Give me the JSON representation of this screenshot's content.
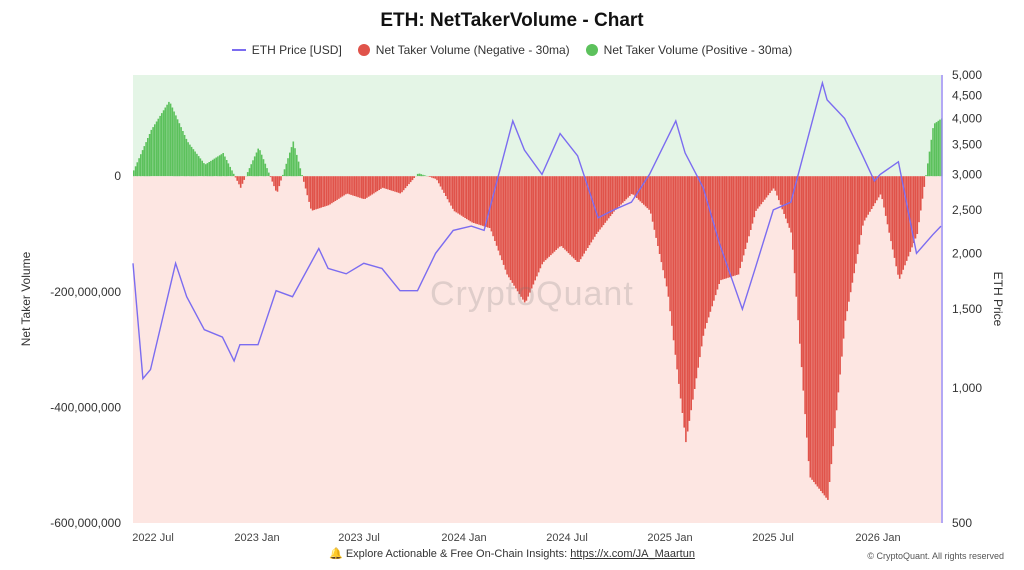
{
  "title": "ETH: NetTakerVolume - Chart",
  "legend": [
    {
      "label": "ETH Price [USD]",
      "color": "#7b6cf0",
      "kind": "line"
    },
    {
      "label": "Net Taker Volume (Negative - 30ma)",
      "color": "#e0534a",
      "kind": "dot"
    },
    {
      "label": "Net Taker Volume (Positive - 30ma)",
      "color": "#5cc15c",
      "kind": "dot"
    }
  ],
  "watermark": "CryptoQuant",
  "footer": {
    "icon": "bell-icon",
    "text": "Explore Actionable & Free On-Chain Insights: ",
    "link": "https://x.com/JA_Maartun"
  },
  "copyright": "© CryptoQuant. All rights reserved",
  "chart_data": {
    "type": "area",
    "x_ticks": [
      "2022 Jul",
      "2023 Jan",
      "2023 Jul",
      "2024 Jan",
      "2024 Jul",
      "2025 Jan",
      "2025 Jul",
      "2026 Jan"
    ],
    "x_range": [
      "2022-06-01",
      "2026-03-15"
    ],
    "y_left": {
      "label": "Net Taker Volume",
      "ticks": [
        0,
        -200000000,
        -400000000,
        -600000000
      ],
      "tick_labels": [
        "0",
        "-200,000,000",
        "-400,000,000",
        "-600,000,000"
      ],
      "range": [
        -600000000,
        175000000
      ]
    },
    "y_right": {
      "label": "ETH Price",
      "scale": "log",
      "range": [
        500,
        5000
      ],
      "ticks": [
        5000,
        4500,
        4000,
        3500,
        3000,
        2500,
        2000,
        1500,
        1000,
        500
      ],
      "tick_labels": [
        "5,000",
        "4,500",
        "4,000",
        "3,500",
        "3,000",
        "2,500",
        "2,000",
        "1,500",
        "1,000",
        "500"
      ]
    },
    "background": {
      "positive": "#e4f5e6",
      "negative": "#fde6e2"
    },
    "net_taker_volume_30ma": {
      "dates": [
        "2022-06-01",
        "2022-07-01",
        "2022-08-01",
        "2022-09-01",
        "2022-10-01",
        "2022-11-01",
        "2022-12-01",
        "2023-01-01",
        "2023-02-01",
        "2023-03-01",
        "2023-04-01",
        "2023-05-01",
        "2023-06-01",
        "2023-07-01",
        "2023-08-01",
        "2023-09-01",
        "2023-10-01",
        "2023-11-01",
        "2023-12-01",
        "2024-01-01",
        "2024-02-01",
        "2024-03-01",
        "2024-04-01",
        "2024-05-01",
        "2024-06-01",
        "2024-07-01",
        "2024-08-01",
        "2024-09-01",
        "2024-10-01",
        "2024-11-01",
        "2024-12-01",
        "2025-01-01",
        "2025-02-01",
        "2025-03-01",
        "2025-04-01",
        "2025-05-01",
        "2025-06-01",
        "2025-07-01",
        "2025-08-01",
        "2025-09-01",
        "2025-10-01",
        "2025-11-01",
        "2025-12-01",
        "2026-01-01",
        "2026-02-01",
        "2026-03-01",
        "2026-03-15"
      ],
      "values": [
        10000000,
        80000000,
        130000000,
        60000000,
        20000000,
        40000000,
        -20000000,
        50000000,
        -30000000,
        60000000,
        -60000000,
        -50000000,
        -30000000,
        -40000000,
        -20000000,
        -30000000,
        5000000,
        -5000000,
        -60000000,
        -80000000,
        -90000000,
        -170000000,
        -220000000,
        -150000000,
        -120000000,
        -150000000,
        -100000000,
        -60000000,
        -30000000,
        -60000000,
        -200000000,
        -460000000,
        -270000000,
        -180000000,
        -170000000,
        -60000000,
        -20000000,
        -100000000,
        -520000000,
        -560000000,
        -250000000,
        -80000000,
        -30000000,
        -180000000,
        -100000000,
        90000000,
        100000000
      ]
    },
    "eth_price_usd": {
      "dates": [
        "2022-06-01",
        "2022-06-18",
        "2022-07-01",
        "2022-08-13",
        "2022-09-01",
        "2022-10-01",
        "2022-11-01",
        "2022-11-21",
        "2022-12-01",
        "2023-01-01",
        "2023-02-01",
        "2023-03-01",
        "2023-04-15",
        "2023-05-01",
        "2023-06-01",
        "2023-07-01",
        "2023-08-01",
        "2023-09-01",
        "2023-10-01",
        "2023-11-01",
        "2023-12-01",
        "2024-01-01",
        "2024-01-23",
        "2024-02-01",
        "2024-03-12",
        "2024-04-01",
        "2024-05-01",
        "2024-06-01",
        "2024-07-01",
        "2024-08-05",
        "2024-09-01",
        "2024-10-01",
        "2024-11-01",
        "2024-12-16",
        "2025-01-01",
        "2025-02-01",
        "2025-03-01",
        "2025-04-09",
        "2025-05-01",
        "2025-06-01",
        "2025-07-01",
        "2025-08-24",
        "2025-09-01",
        "2025-10-01",
        "2025-11-01",
        "2025-11-21",
        "2025-12-01",
        "2026-01-01",
        "2026-02-01",
        "2026-03-01",
        "2026-03-15"
      ],
      "values": [
        1900,
        1050,
        1100,
        1900,
        1600,
        1350,
        1300,
        1150,
        1250,
        1250,
        1650,
        1600,
        2050,
        1850,
        1800,
        1900,
        1850,
        1650,
        1650,
        2000,
        2250,
        2300,
        2250,
        2500,
        3950,
        3400,
        3000,
        3700,
        3300,
        2400,
        2500,
        2600,
        3000,
        3950,
        3350,
        2800,
        2100,
        1500,
        1850,
        2500,
        2600,
        4800,
        4400,
        4000,
        3300,
        2900,
        3000,
        3200,
        2000,
        2200,
        2300
      ]
    }
  }
}
